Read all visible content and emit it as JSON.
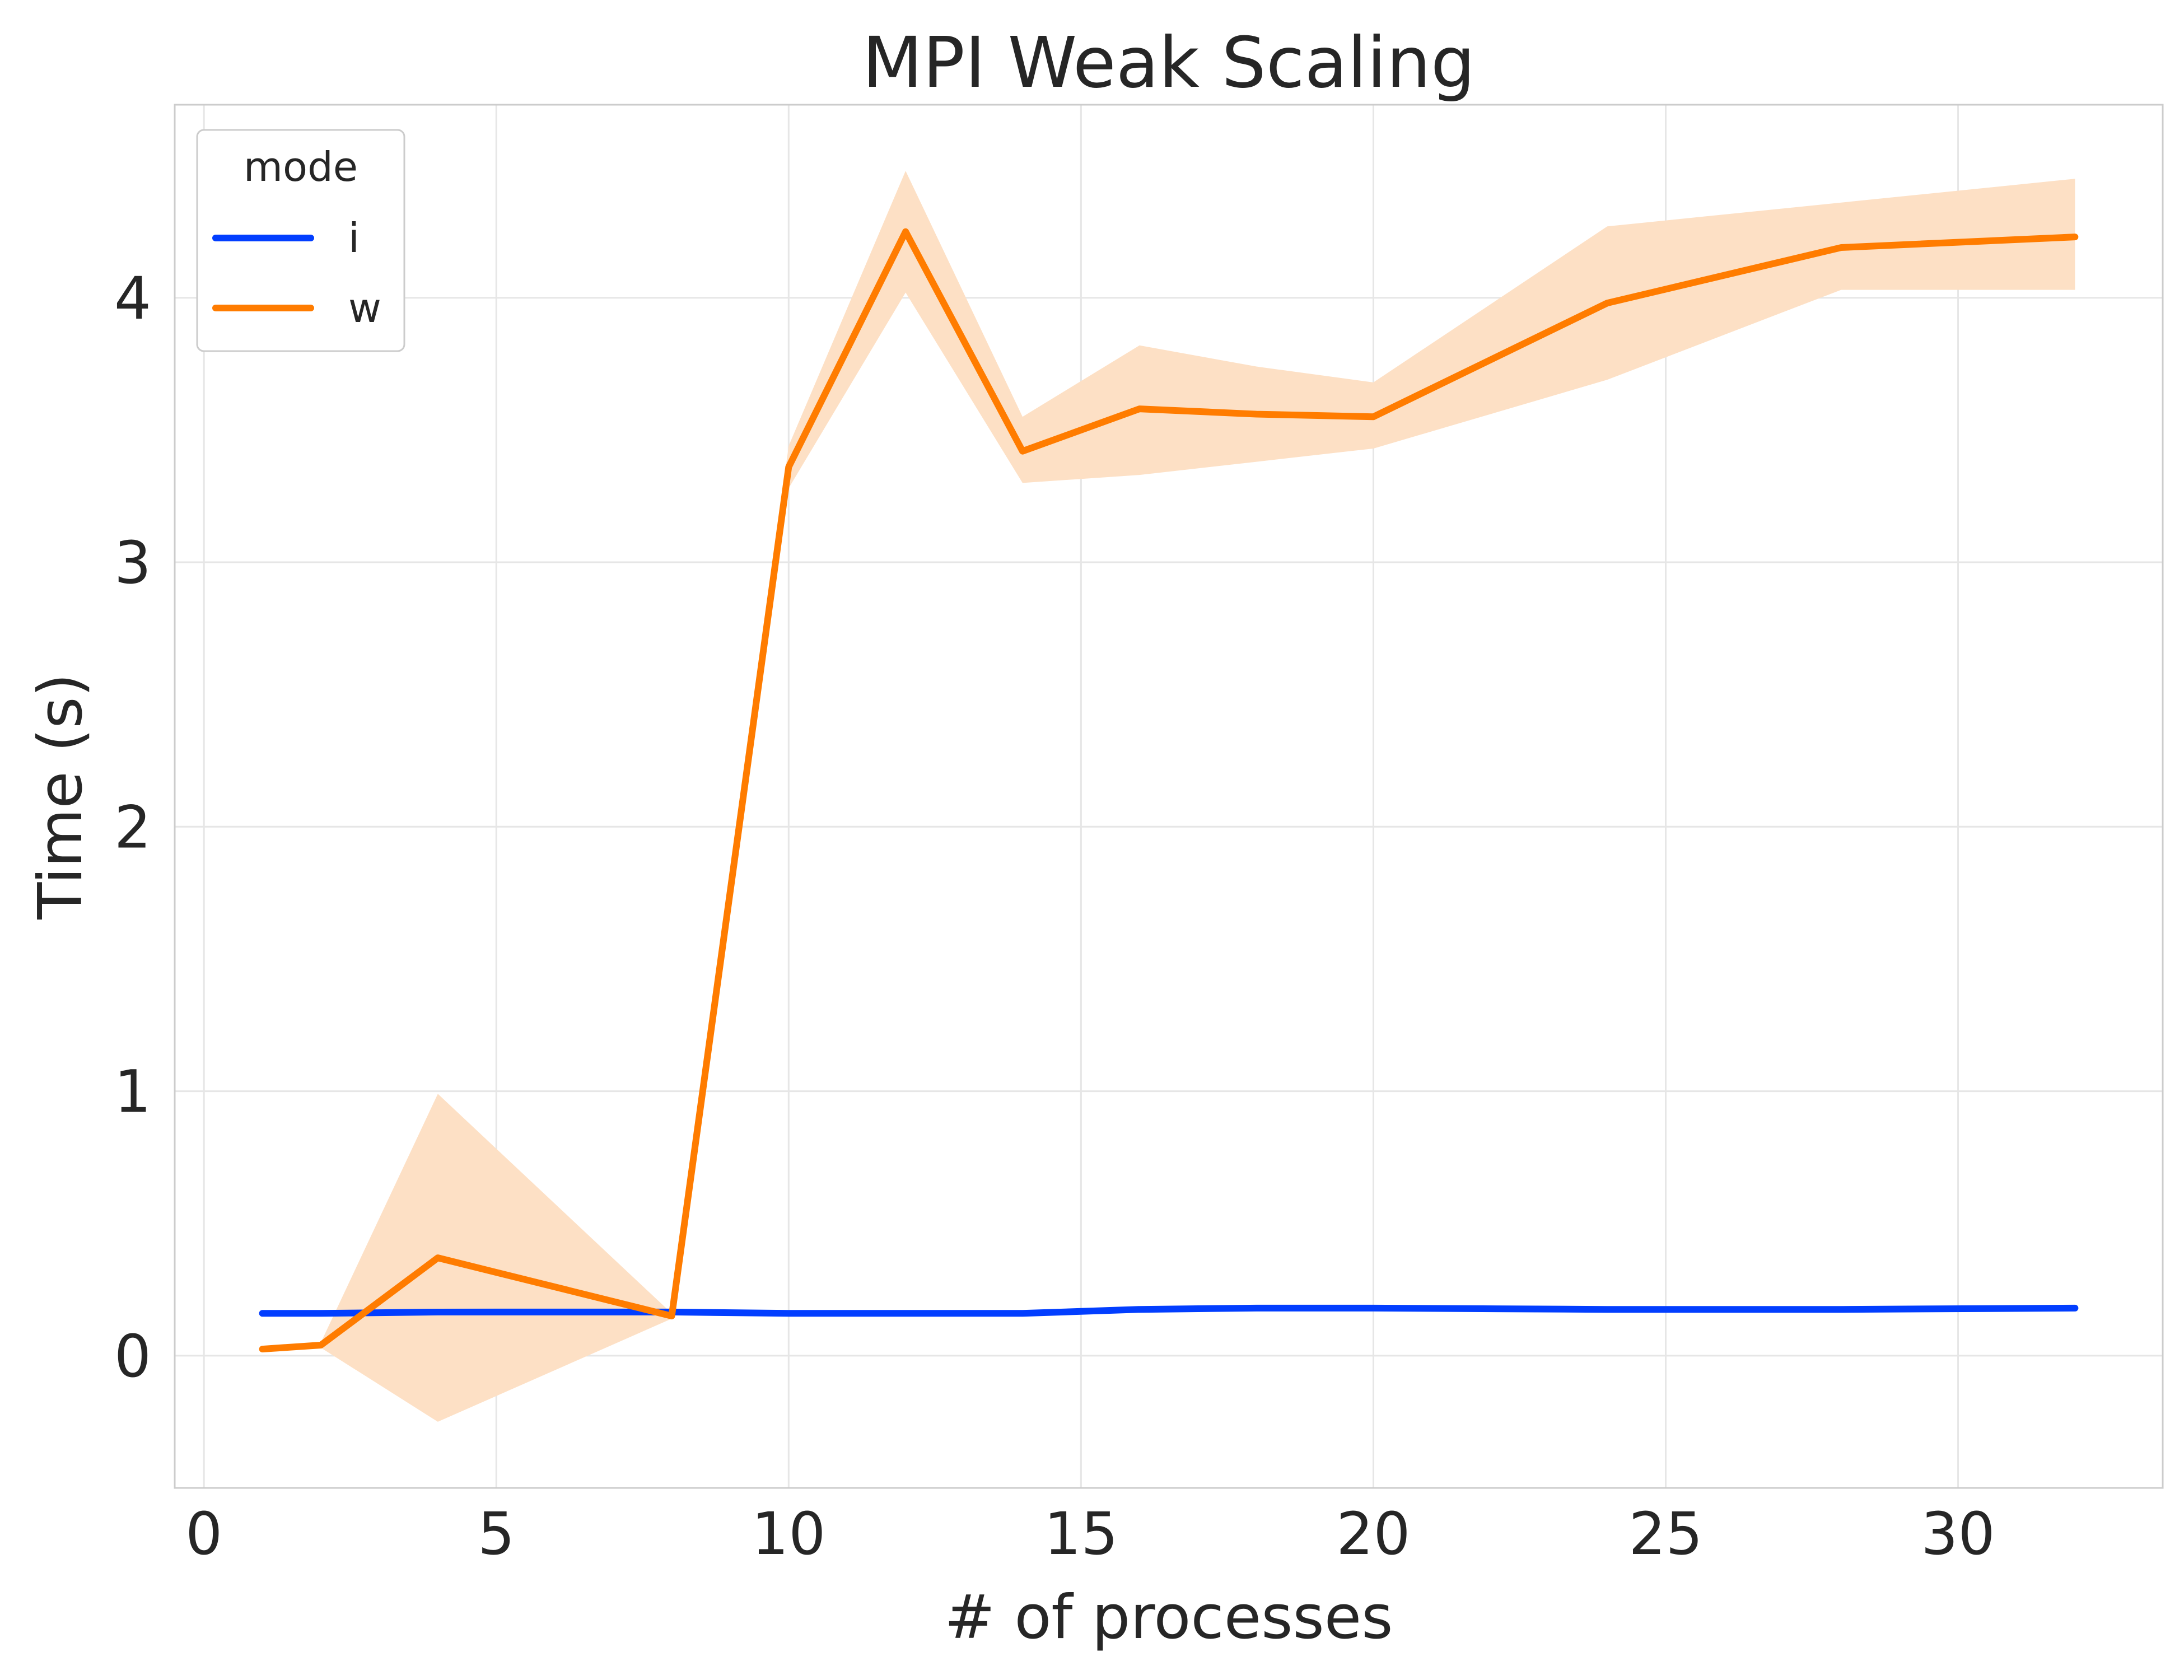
{
  "chart_data": {
    "type": "line",
    "title": "MPI Weak Scaling",
    "xlabel": "# of processes",
    "ylabel": "Time (s)",
    "xlim": [
      -0.5,
      33.5
    ],
    "ylim": [
      -0.5,
      4.73
    ],
    "xticks": [
      0,
      5,
      10,
      15,
      20,
      25,
      30
    ],
    "yticks": [
      0,
      1,
      2,
      3,
      4
    ],
    "grid": true,
    "legend": {
      "title": "mode",
      "position": "top-left"
    },
    "series": [
      {
        "name": "i",
        "color": "#023eff",
        "x": [
          1,
          2,
          4,
          8,
          10,
          12,
          14,
          16,
          18,
          20,
          24,
          28,
          32
        ],
        "y": [
          0.16,
          0.16,
          0.165,
          0.165,
          0.16,
          0.16,
          0.16,
          0.175,
          0.18,
          0.18,
          0.175,
          0.175,
          0.18
        ]
      },
      {
        "name": "w",
        "color": "#ff7c00",
        "band_color": "#fde0c5",
        "x": [
          1,
          2,
          4,
          8,
          10,
          12,
          14,
          16,
          18,
          20,
          24,
          28,
          32
        ],
        "y": [
          0.025,
          0.04,
          0.37,
          0.15,
          3.36,
          4.25,
          3.42,
          3.58,
          3.56,
          3.55,
          3.98,
          4.19,
          4.23
        ],
        "ci_low": [
          0.025,
          0.03,
          -0.25,
          0.14,
          3.28,
          4.02,
          3.3,
          3.33,
          3.38,
          3.43,
          3.69,
          4.03,
          4.03
        ],
        "ci_high": [
          0.025,
          0.05,
          0.99,
          0.16,
          3.44,
          4.48,
          3.55,
          3.82,
          3.74,
          3.68,
          4.27,
          4.36,
          4.45
        ]
      }
    ]
  }
}
